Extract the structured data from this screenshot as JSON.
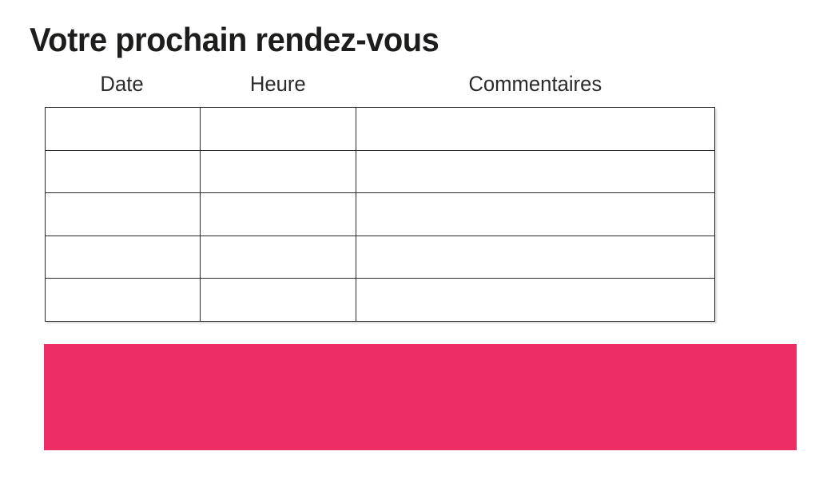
{
  "page": {
    "title": "Votre prochain rendez-vous"
  },
  "table": {
    "columns": [
      {
        "label": "Date"
      },
      {
        "label": "Heure"
      },
      {
        "label": "Commentaires"
      }
    ],
    "rows": [
      [
        "",
        "",
        ""
      ],
      [
        "",
        "",
        ""
      ],
      [
        "",
        "",
        ""
      ],
      [
        "",
        "",
        ""
      ],
      [
        "",
        "",
        ""
      ]
    ]
  },
  "colors": {
    "accent_pink": "#ED2E64",
    "title_text": "#1D1D1B",
    "header_text": "#2B2B2B",
    "table_border": "#2A2A2A",
    "background": "#FFFFFF"
  }
}
